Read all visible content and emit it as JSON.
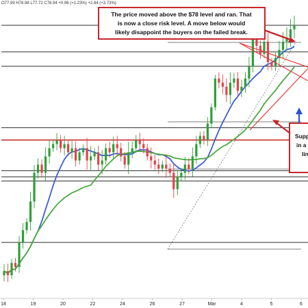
{
  "header": {
    "ohlc_text": "O77.99 H78.98 L77.72 C78.94 +0.96 (+1.23%) +2.84 (+3.73%)"
  },
  "annotations": {
    "main_lines": [
      "The price moved above the $78 level and ran. That",
      "is now a close risk level.  A move below would",
      "likely disappoint the buyers on the failed break."
    ],
    "support_lines": [
      "Supp",
      "in a",
      "lin"
    ]
  },
  "colors": {
    "candle_up": "#2e9e3a",
    "candle_down": "#e0434a",
    "ma_fast": "#3a5bd9",
    "ma_slow": "#4aaa3e",
    "level_line": "#444444",
    "red_level": "#cc2a2a",
    "annotation_border": "#c8242a",
    "trend_red": "#e63c3c",
    "arrow_blue": "#2b4fd6"
  },
  "chart_data": {
    "type": "candlestick",
    "x_tick_labels": [
      "18",
      "19",
      "20",
      "22",
      "24",
      "26",
      "27",
      "Mar",
      "4",
      "5",
      "6"
    ],
    "series": [
      {
        "close_path": [
          [
            0,
            72.9
          ],
          [
            1,
            72.8
          ],
          [
            2,
            73.1
          ],
          [
            3,
            73.0
          ],
          [
            4,
            73.6
          ],
          [
            5,
            73.9
          ],
          [
            6,
            74.1
          ],
          [
            7,
            74.6
          ],
          [
            8,
            75.3
          ],
          [
            9,
            75.5
          ],
          [
            10,
            75.3
          ],
          [
            11,
            75.7
          ],
          [
            12,
            75.9
          ],
          [
            13,
            76.0
          ],
          [
            14,
            76.1
          ],
          [
            15,
            75.9
          ],
          [
            16,
            76.0
          ],
          [
            17,
            75.8
          ],
          [
            18,
            75.9
          ],
          [
            19,
            75.6
          ],
          [
            20,
            75.8
          ],
          [
            21,
            75.9
          ],
          [
            22,
            75.6
          ],
          [
            23,
            75.7
          ],
          [
            24,
            75.8
          ],
          [
            25,
            75.5
          ],
          [
            26,
            75.6
          ],
          [
            27,
            75.9
          ],
          [
            28,
            75.8
          ],
          [
            29,
            76.0
          ],
          [
            30,
            75.9
          ],
          [
            31,
            75.7
          ],
          [
            32,
            75.5
          ],
          [
            33,
            75.8
          ],
          [
            34,
            75.9
          ],
          [
            35,
            76.1
          ],
          [
            36,
            76.0
          ],
          [
            37,
            75.9
          ],
          [
            38,
            75.7
          ],
          [
            39,
            75.6
          ],
          [
            40,
            75.5
          ],
          [
            41,
            75.4
          ],
          [
            42,
            75.5
          ],
          [
            43,
            75.4
          ],
          [
            44,
            75.3
          ],
          [
            45,
            74.9
          ],
          [
            46,
            75.2
          ],
          [
            47,
            75.3
          ],
          [
            48,
            75.5
          ],
          [
            49,
            75.4
          ],
          [
            50,
            75.7
          ],
          [
            51,
            76.0
          ],
          [
            52,
            76.2
          ],
          [
            53,
            76.1
          ],
          [
            54,
            76.5
          ],
          [
            55,
            76.9
          ],
          [
            56,
            77.6
          ],
          [
            57,
            77.5
          ],
          [
            58,
            77.4
          ],
          [
            59,
            77.2
          ],
          [
            60,
            77.5
          ],
          [
            61,
            77.6
          ],
          [
            62,
            77.3
          ],
          [
            63,
            77.4
          ],
          [
            64,
            77.6
          ],
          [
            65,
            77.9
          ],
          [
            66,
            78.6
          ],
          [
            67,
            78.4
          ],
          [
            68,
            78.2
          ],
          [
            69,
            78.5
          ],
          [
            70,
            78.0
          ],
          [
            71,
            77.9
          ],
          [
            72,
            78.1
          ],
          [
            73,
            78.3
          ],
          [
            74,
            78.5
          ],
          [
            75,
            78.6
          ],
          [
            76,
            78.8
          ],
          [
            77,
            78.9
          ]
        ]
      },
      {
        "name": "",
        "kind": "moving-average-fast",
        "color_key": "ma_fast"
      },
      {
        "name": "",
        "kind": "moving-average-slow",
        "color_key": "ma_slow"
      }
    ],
    "horizontal_levels": [
      {
        "kind": "black",
        "value": 78.9
      },
      {
        "kind": "black",
        "value": 78.25
      },
      {
        "kind": "black",
        "value": 77.9
      },
      {
        "kind": "black",
        "value": 76.4
      },
      {
        "kind": "red",
        "value": 76.1
      },
      {
        "kind": "black",
        "value": 75.35
      },
      {
        "kind": "black",
        "value": 75.2
      },
      {
        "kind": "black",
        "value": 75.1
      },
      {
        "kind": "black",
        "value": 73.6
      }
    ],
    "grid": false
  }
}
